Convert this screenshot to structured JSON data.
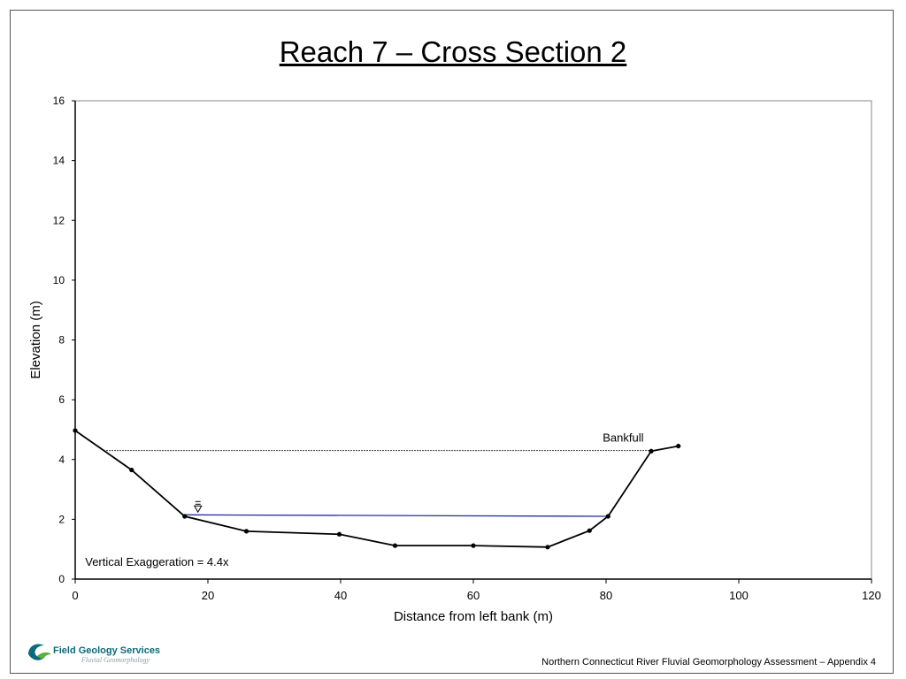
{
  "slide": {
    "title": "Reach 7 – Cross Section 2",
    "footer": "Northern Connecticut River Fluvial Geomorphology Assessment – Appendix 4",
    "logo_text": "Field Geology Services",
    "logo_subtext": "Fluvial Geomorphology"
  },
  "chart_data": {
    "type": "line",
    "title": "",
    "xlabel": "Distance from left bank (m)",
    "ylabel": "Elevation (m)",
    "xlim": [
      0,
      120
    ],
    "ylim": [
      0,
      16
    ],
    "xticks": [
      0,
      20,
      40,
      60,
      80,
      100,
      120
    ],
    "yticks": [
      0,
      2,
      4,
      6,
      8,
      10,
      12,
      14,
      16
    ],
    "grid": false,
    "series": [
      {
        "x": [
          0,
          8.5,
          16.5,
          25.8,
          39.8,
          48.2,
          60,
          71.2,
          77.5,
          80.3,
          86.8,
          90.9
        ],
        "y": [
          4.97,
          3.65,
          2.1,
          1.6,
          1.5,
          1.12,
          1.12,
          1.07,
          1.62,
          2.1,
          4.28,
          4.45
        ],
        "color": "#000000"
      }
    ],
    "bankfull_line": {
      "x": [
        4.3,
        86.8
      ],
      "y": [
        4.3,
        4.3
      ],
      "style": "dotted",
      "color": "#000000"
    },
    "water_surface": {
      "x": [
        16.5,
        80.3
      ],
      "y": [
        2.15,
        2.1
      ],
      "color": "#1f2f9a",
      "symbol_x": 18.5,
      "symbol_y": 2.15
    },
    "annotations": [
      {
        "text": "Bankfull",
        "x": 79.5,
        "y": 4.6
      },
      {
        "text": "Vertical Exaggeration = 4.4x",
        "x": 1.5,
        "y": 0.45
      }
    ]
  }
}
